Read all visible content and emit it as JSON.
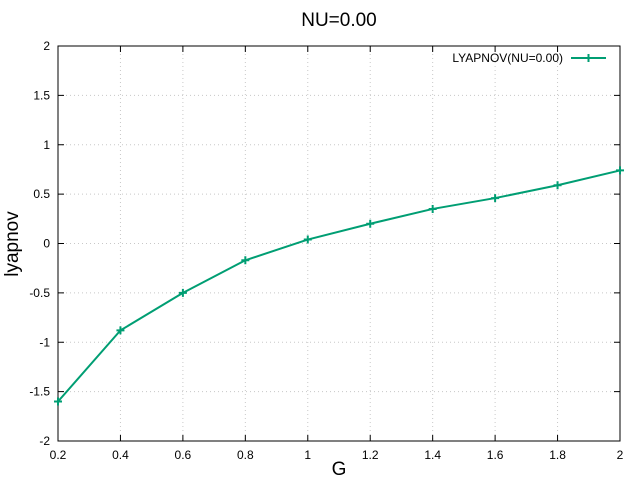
{
  "chart_data": {
    "type": "line",
    "title": "NU=0.00",
    "xlabel": "G",
    "ylabel": "lyapnov",
    "xlim": [
      0.2,
      2
    ],
    "ylim": [
      -2,
      2
    ],
    "x_ticks": [
      0.2,
      0.4,
      0.6,
      0.8,
      1.0,
      1.2,
      1.4,
      1.6,
      1.8,
      2.0
    ],
    "x_tick_labels": [
      "0.2",
      "0.4",
      "0.6",
      "0.8",
      "1",
      "1.2",
      "1.4",
      "1.6",
      "1.8",
      "2"
    ],
    "y_ticks": [
      -2,
      -1.5,
      -1,
      -0.5,
      0,
      0.5,
      1,
      1.5,
      2
    ],
    "y_tick_labels": [
      "-2",
      "-1.5",
      "-1",
      "-0.5",
      "0",
      "0.5",
      "1",
      "1.5",
      "2"
    ],
    "grid": true,
    "legend_position": "top-right",
    "series": [
      {
        "name": "LYAPNOV(NU=0.00)",
        "color": "#009e73",
        "marker": "plus",
        "x": [
          0.2,
          0.4,
          0.6,
          0.8,
          1.0,
          1.2,
          1.4,
          1.6,
          1.8,
          2.0
        ],
        "y": [
          -1.6,
          -0.88,
          -0.5,
          -0.17,
          0.04,
          0.2,
          0.35,
          0.46,
          0.59,
          0.74
        ]
      }
    ]
  }
}
